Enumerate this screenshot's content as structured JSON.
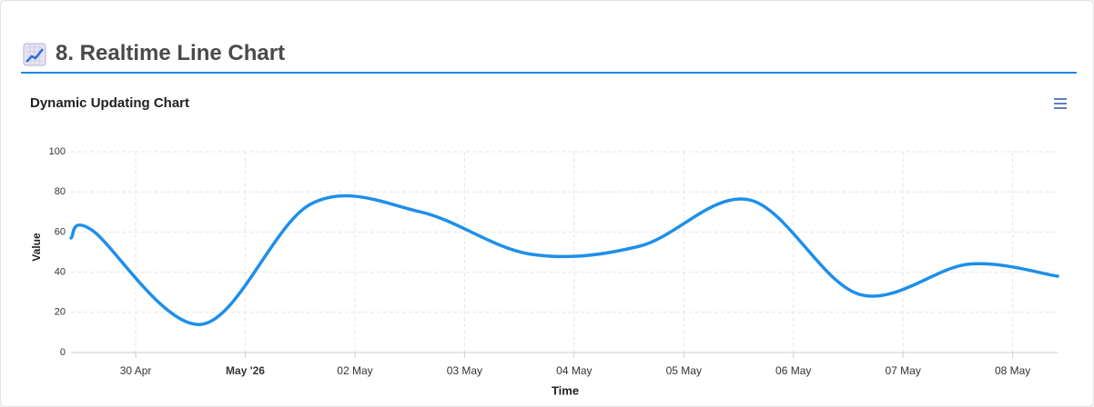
{
  "header": {
    "title": "8. Realtime Line Chart"
  },
  "chart_data": {
    "type": "line",
    "title": "Dynamic Updating Chart",
    "x_label": "Time",
    "y_label": "Value",
    "x": [
      -0.59,
      -0.4,
      0.6,
      1.6,
      2.6,
      3.6,
      4.6,
      5.6,
      6.6,
      7.6,
      8.41
    ],
    "series": [
      {
        "name": "Value",
        "color": "#1e8fea",
        "values": [
          57,
          61,
          14,
          74,
          70,
          49,
          53,
          76,
          29,
          44,
          38
        ]
      }
    ],
    "xlim": [
      -0.59,
      8.41
    ],
    "xticks": [
      {
        "value": 0,
        "label": "30 Apr"
      },
      {
        "value": 1,
        "label": "May '26"
      },
      {
        "value": 2,
        "label": "02 May"
      },
      {
        "value": 3,
        "label": "03 May"
      },
      {
        "value": 4,
        "label": "04 May"
      },
      {
        "value": 5,
        "label": "05 May"
      },
      {
        "value": 6,
        "label": "06 May"
      },
      {
        "value": 7,
        "label": "07 May"
      },
      {
        "value": 8,
        "label": "08 May"
      }
    ],
    "ylim": [
      0,
      100
    ],
    "yticks": [
      0,
      20,
      40,
      60,
      80,
      100
    ],
    "grid": true
  }
}
